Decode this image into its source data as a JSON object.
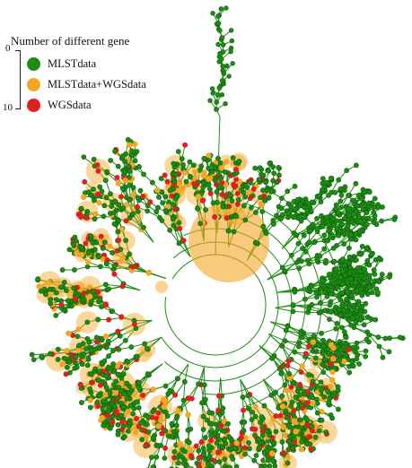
{
  "figure": {
    "scale": {
      "title": "Number of different gene",
      "min_label": "0",
      "max_label": "10"
    },
    "legend": [
      {
        "label": "MLSTdata",
        "color": "#1e8c14"
      },
      {
        "label": "MLSTdata+WGSdata",
        "color": "#f5a623"
      },
      {
        "label": "WGSdata",
        "color": "#e0201e"
      }
    ]
  }
}
